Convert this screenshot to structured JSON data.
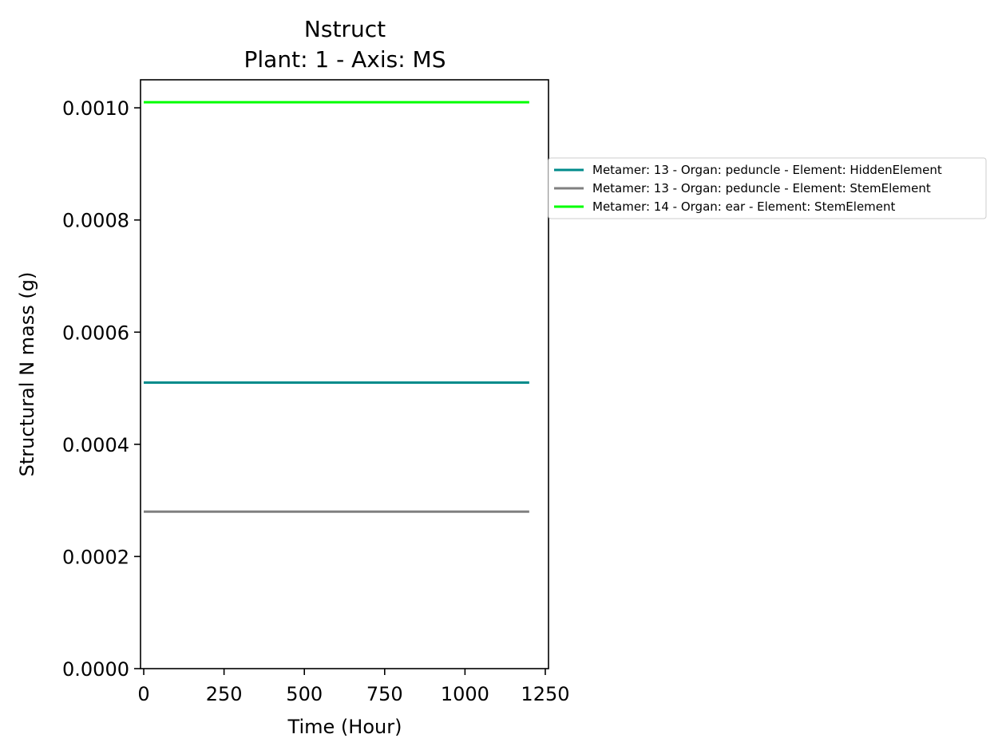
{
  "chart_data": {
    "type": "line",
    "title": "Nstruct",
    "subtitle": "Plant: 1 - Axis: MS",
    "xlabel": "Time (Hour)",
    "ylabel": "Structural N mass (g)",
    "xlim": [
      -10,
      1260
    ],
    "ylim": [
      0,
      0.00105
    ],
    "xticks": [
      0,
      250,
      500,
      750,
      1000,
      1250
    ],
    "xtick_labels": [
      "0",
      "250",
      "500",
      "750",
      "1000",
      "1250"
    ],
    "yticks": [
      0,
      0.0002,
      0.0004,
      0.0006,
      0.0008,
      0.001
    ],
    "ytick_labels": [
      "0.0000",
      "0.0002",
      "0.0004",
      "0.0006",
      "0.0008",
      "0.0010"
    ],
    "grid": false,
    "legend_position": "outside right",
    "series": [
      {
        "name": "Metamer: 13 - Organ: peduncle - Element: HiddenElement",
        "color": "#008b8b",
        "x": [
          0,
          1200
        ],
        "y": [
          0.00051,
          0.00051
        ]
      },
      {
        "name": "Metamer: 13 - Organ: peduncle - Element: StemElement",
        "color": "#808080",
        "x": [
          0,
          1200
        ],
        "y": [
          0.00028,
          0.00028
        ]
      },
      {
        "name": "Metamer: 14 - Organ: ear - Element: StemElement",
        "color": "#00ff00",
        "x": [
          0,
          1200
        ],
        "y": [
          0.00101,
          0.00101
        ]
      }
    ]
  }
}
